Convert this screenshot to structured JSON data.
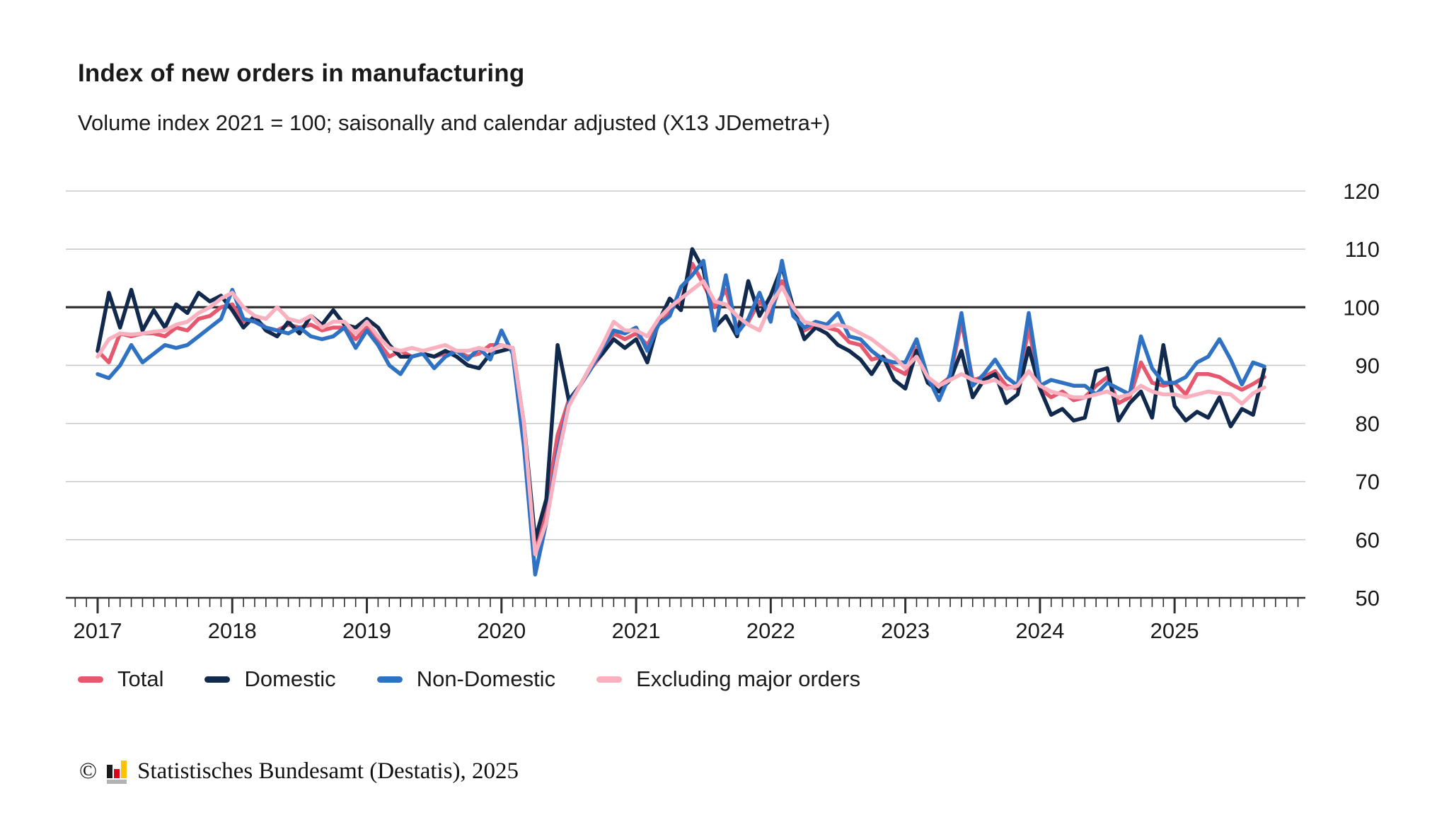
{
  "header": {
    "title": "Index of new orders in manufacturing",
    "subtitle": "Volume index 2021 = 100; saisonally and calendar adjusted (X13 JDemetra+)"
  },
  "footer": {
    "copyright_symbol": "©",
    "source": "Statistisches Bundesamt (Destatis), 2025",
    "logo_icon": "destatis-bar-chart-logo",
    "logo_colors": {
      "bar_black": "#1a1a1a",
      "bar_red": "#e10019",
      "bar_gold": "#fdc300",
      "base_grey": "#b2b2b2"
    }
  },
  "chart_data": {
    "type": "line",
    "title": "Index of new orders in manufacturing",
    "subtitle": "Volume index 2021 = 100; saisonally and calendar adjusted (X13 JDemetra+)",
    "frequency": "monthly",
    "x_start": "2017-01",
    "x_end": "2025-09",
    "x_tick_years": [
      2017,
      2018,
      2019,
      2020,
      2021,
      2022,
      2023,
      2024,
      2025
    ],
    "y_ticks": [
      120,
      110,
      100,
      90,
      80,
      70,
      60,
      50
    ],
    "ylim": [
      50,
      120
    ],
    "reference_line": 100,
    "grid": true,
    "legend_position": "bottom",
    "axis_color": "#2f2f2f",
    "grid_color": "#c9c9c9",
    "label_color": "#1a1a1a",
    "series": [
      {
        "name": "Total",
        "color": "#e5586e",
        "values": [
          92.5,
          90.5,
          95.5,
          95,
          95.5,
          95.5,
          95,
          96.5,
          96,
          98,
          98.5,
          100,
          100.5,
          97.5,
          98,
          96.5,
          96,
          97,
          96.5,
          97,
          96,
          96.5,
          96.5,
          94.5,
          96.5,
          94,
          91.5,
          92.5,
          91.5,
          92,
          91.5,
          92,
          92.5,
          91.5,
          92,
          93.5,
          93.5,
          92.5,
          78,
          57.5,
          66,
          78,
          84,
          86.5,
          89.5,
          92,
          95.5,
          94.5,
          95.5,
          93.5,
          97,
          99.5,
          101,
          107.5,
          104,
          100,
          103,
          96.5,
          97.5,
          101,
          99,
          104.5,
          99,
          96,
          97,
          96.5,
          96,
          94,
          93.5,
          91,
          91.5,
          89.5,
          88.5,
          93,
          87.5,
          86.5,
          88,
          97.5,
          87.5,
          88,
          89,
          86.5,
          86,
          96.5,
          86,
          84.5,
          85.5,
          84,
          84.5,
          86.5,
          88,
          83.5,
          84.5,
          90.5,
          87,
          86.5,
          87,
          85,
          88.5,
          88.5,
          88,
          86.8,
          85.8,
          86.8,
          88
        ]
      },
      {
        "name": "Domestic",
        "color": "#10294d",
        "values": [
          92.5,
          102.5,
          96.5,
          103,
          96,
          99.5,
          96.5,
          100.5,
          99,
          102.5,
          101,
          102,
          99.5,
          96.5,
          98.5,
          96,
          95,
          97.5,
          95.5,
          98.5,
          97,
          99.5,
          97,
          96.5,
          98,
          96.5,
          93.5,
          91.5,
          91.5,
          92,
          91.5,
          92.5,
          91.5,
          90,
          89.5,
          92,
          92.5,
          93,
          80,
          60,
          67,
          93.5,
          84,
          86.5,
          90,
          92,
          94.5,
          93,
          94.5,
          90.5,
          97.5,
          101.5,
          99.5,
          110,
          106.5,
          96.5,
          98.5,
          95,
          104.5,
          98.5,
          102,
          107,
          100,
          94.5,
          96.5,
          95.5,
          93.5,
          92.5,
          91,
          88.5,
          91.5,
          87.5,
          86,
          92.5,
          87,
          85.5,
          87.5,
          92.5,
          84.5,
          87.5,
          88.5,
          83.5,
          85,
          93,
          86,
          81.5,
          82.5,
          80.5,
          81,
          89,
          89.5,
          80.5,
          83.5,
          85.5,
          81,
          93.5,
          83,
          80.5,
          82,
          81,
          84.5,
          79.5,
          82.5,
          81.5,
          89.4
        ]
      },
      {
        "name": "Non-Domestic",
        "color": "#2f72c4",
        "values": [
          88.5,
          87.8,
          90,
          93.5,
          90.5,
          92,
          93.5,
          93,
          93.5,
          95,
          96.5,
          98,
          103,
          98,
          97.5,
          96.5,
          96,
          95.5,
          96.5,
          95,
          94.5,
          95,
          96.5,
          93,
          96,
          93.5,
          90,
          88.5,
          91.5,
          92,
          89.5,
          91.5,
          92.5,
          91,
          93,
          91,
          96,
          92,
          76,
          54,
          63,
          75,
          83.5,
          86.5,
          89.5,
          93,
          96,
          95.5,
          96.5,
          92.5,
          97,
          98.5,
          103.5,
          105.5,
          108,
          96,
          105.5,
          95.5,
          98,
          102.5,
          97.5,
          108,
          98.5,
          96.5,
          97.5,
          97,
          99,
          95,
          94.5,
          92.5,
          91,
          90.5,
          90.5,
          94.5,
          88,
          84,
          88.5,
          99,
          86.5,
          88.5,
          91,
          88,
          86.5,
          99,
          86.5,
          87.5,
          87,
          86.5,
          86.5,
          85,
          87,
          86,
          85,
          95,
          89.5,
          87,
          87,
          88,
          90.5,
          91.5,
          94.5,
          91,
          86.7,
          90.5,
          89.8
        ]
      },
      {
        "name": "Excluding major orders",
        "color": "#f9b1bf",
        "values": [
          91.5,
          94.5,
          95.5,
          95.3,
          95.5,
          95.8,
          96,
          97,
          97.5,
          99,
          100,
          101.5,
          102.5,
          100,
          98.5,
          98,
          100,
          98,
          97.5,
          98.5,
          96.5,
          97.5,
          97.5,
          95.5,
          97.5,
          95,
          93,
          92.5,
          93,
          92.5,
          93,
          93.5,
          92.5,
          92.5,
          93,
          92.5,
          93.5,
          93,
          80,
          57.5,
          63,
          74,
          83,
          86.5,
          90,
          93.5,
          97.5,
          96,
          96,
          95,
          98,
          100,
          101.5,
          103,
          104.5,
          101,
          100.5,
          98.5,
          97,
          96,
          100.5,
          103.5,
          100,
          97.5,
          97,
          96.5,
          97,
          96.5,
          95.5,
          94.5,
          93,
          91.5,
          89.5,
          91.5,
          88,
          86.5,
          87.5,
          88.5,
          87.5,
          87,
          87.5,
          86,
          86.5,
          89,
          86.5,
          85.5,
          85,
          84.5,
          84.5,
          85,
          85.5,
          84.5,
          85,
          86.5,
          85.5,
          85,
          85,
          84.5,
          85,
          85.5,
          85.2,
          85,
          83.4,
          85.2,
          86.2
        ]
      }
    ]
  }
}
